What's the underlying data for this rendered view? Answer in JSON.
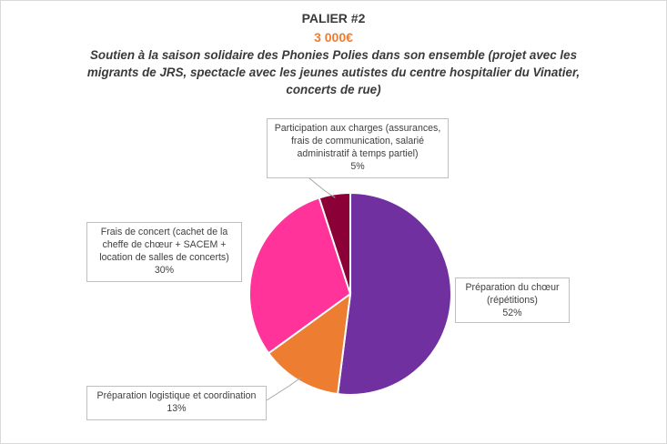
{
  "chart_data": {
    "type": "pie",
    "title": "PALIER #2",
    "amount": "3 000€",
    "subtitle": "Soutien à la saison solidaire des Phonies Polies dans son ensemble (projet avec les migrants de JRS, spectacle avec les jeunes autistes du centre hospitalier du Vinatier, concerts de rue)",
    "slices": [
      {
        "label": "Préparation du chœur (répétitions)",
        "value": 52,
        "display": "52%",
        "color": "#7030a0"
      },
      {
        "label": "Préparation logistique et coordination",
        "value": 13,
        "display": "13%",
        "color": "#ed7d31"
      },
      {
        "label": "Frais de concert (cachet de la cheffe de chœur + SACEM + location de salles de concerts)",
        "value": 30,
        "display": "30%",
        "color": "#ff3399"
      },
      {
        "label": "Participation aux charges (assurances, frais de communication, salarié administratif à temps partiel)",
        "value": 5,
        "display": "5%",
        "color": "#8b0036"
      }
    ]
  }
}
